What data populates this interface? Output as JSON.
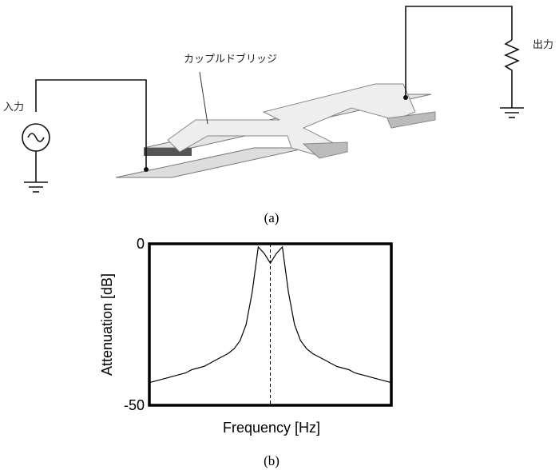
{
  "diagram": {
    "bridge_label": "カップルドブリッジ",
    "input_label": "入力",
    "output_label": "出力",
    "caption": "(a)"
  },
  "chart_data": {
    "type": "line",
    "ylabel": "Attenuation [dB]",
    "xlabel": "Frequency [Hz]",
    "caption": "(b)",
    "ylim": [
      -50,
      0
    ],
    "yticks": [
      0,
      -50
    ],
    "color": "#000000",
    "categories": [
      null,
      null,
      null,
      null,
      null,
      null,
      null,
      null,
      null,
      null,
      null,
      null,
      null,
      null,
      null,
      null,
      null,
      null,
      null,
      null,
      null,
      null,
      null,
      null,
      null,
      null,
      null,
      null,
      null,
      null,
      null,
      null,
      null,
      null,
      null,
      null,
      null,
      null,
      null,
      null,
      null
    ],
    "values": [
      -43,
      -42.5,
      -42,
      -41.5,
      -41,
      -40.5,
      -40,
      -39,
      -38.5,
      -38,
      -37,
      -36,
      -35,
      -34,
      -32.5,
      -30,
      -25,
      -15,
      -1,
      -3,
      -6,
      -3,
      -1,
      -15,
      -25,
      -30,
      -32.5,
      -34,
      -35,
      -36,
      -37,
      -38,
      -38.5,
      -39,
      -40,
      -40.5,
      -41,
      -41.5,
      -42,
      -42.5,
      -43
    ]
  }
}
